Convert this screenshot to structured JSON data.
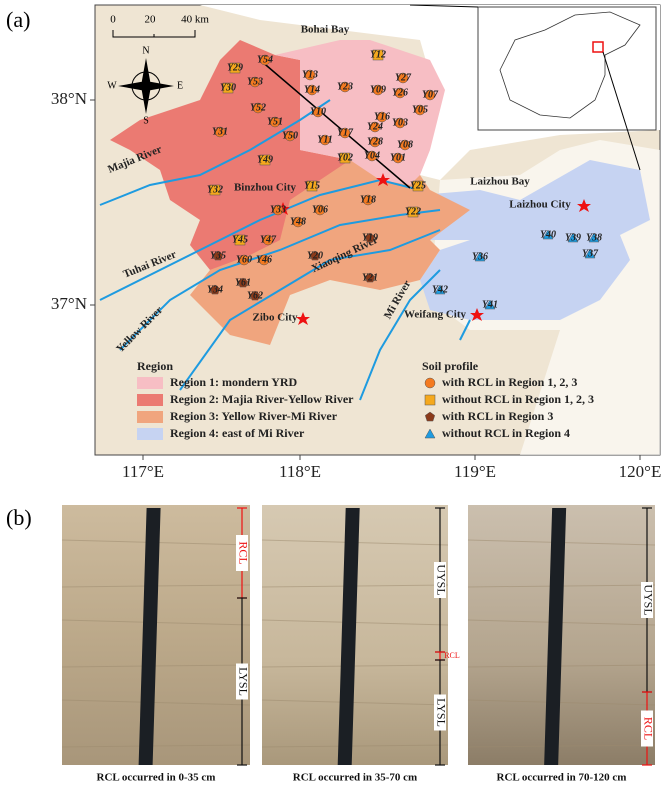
{
  "panel_a": {
    "label": "(a)",
    "scale_bar": [
      "0",
      "20",
      "40 km"
    ],
    "compass": [
      "N",
      "E",
      "S",
      "W"
    ],
    "water_labels": [
      "Bohai Bay",
      "Laizhou Bay"
    ],
    "rivers": [
      "Majia River",
      "Tuhai River",
      "Yellow River",
      "Xiaoqing River",
      "Mi River"
    ],
    "cities": [
      "Binzhou City",
      "Zibo City",
      "Weifang City",
      "Laizhou City"
    ],
    "latitude_ticks": [
      "38°N",
      "37°N"
    ],
    "longitude_ticks": [
      "117°E",
      "118°E",
      "119°E",
      "120°E"
    ],
    "legend": {
      "region_title": "Region",
      "regions": [
        {
          "name": "Region 1: mondern YRD",
          "color": "#f7bec4"
        },
        {
          "name": "Region 2: Majia River-Yellow River",
          "color": "#eb7a72"
        },
        {
          "name": "Region 3: Yellow River-Mi River",
          "color": "#f0a57e"
        },
        {
          "name": "Region 4: east of Mi River",
          "color": "#c6d3f2"
        }
      ],
      "profile_title": "Soil profile",
      "profiles": [
        {
          "name": "with RCL in Region 1, 2, 3",
          "marker": "circle",
          "color": "#f47a20"
        },
        {
          "name": "without RCL in Region 1, 2, 3",
          "marker": "square",
          "color": "#f5a81c"
        },
        {
          "name": "with RCL in Region 3",
          "marker": "pentagon",
          "color": "#8b3a1a"
        },
        {
          "name": "without RCL in Region 4",
          "marker": "triangle",
          "color": "#1e9be0"
        }
      ]
    },
    "sites": [
      {
        "label": "Y54",
        "profile": 0
      },
      {
        "label": "Y29",
        "profile": 1
      },
      {
        "label": "Y30",
        "profile": 1
      },
      {
        "label": "Y53",
        "profile": 0
      },
      {
        "label": "Y52",
        "profile": 0
      },
      {
        "label": "Y51",
        "profile": 0
      },
      {
        "label": "Y50",
        "profile": 0
      },
      {
        "label": "Y31",
        "profile": 0
      },
      {
        "label": "Y49",
        "profile": 1
      },
      {
        "label": "Y32",
        "profile": 1
      },
      {
        "label": "Y33",
        "profile": 0
      },
      {
        "label": "Y15",
        "profile": 1
      },
      {
        "label": "Y06",
        "profile": 0
      },
      {
        "label": "Y48",
        "profile": 0
      },
      {
        "label": "Y45",
        "profile": 1
      },
      {
        "label": "Y47",
        "profile": 0
      },
      {
        "label": "Y35",
        "profile": 2
      },
      {
        "label": "Y60",
        "profile": 0
      },
      {
        "label": "Y46",
        "profile": 0
      },
      {
        "label": "Y61",
        "profile": 2
      },
      {
        "label": "Y34",
        "profile": 2
      },
      {
        "label": "Y62",
        "profile": 2
      },
      {
        "label": "Y20",
        "profile": 2
      },
      {
        "label": "Y19",
        "profile": 2
      },
      {
        "label": "Y21",
        "profile": 2
      },
      {
        "label": "Y18",
        "profile": 0
      },
      {
        "label": "Y22",
        "profile": 1
      },
      {
        "label": "Y25",
        "profile": 1
      },
      {
        "label": "Y12",
        "profile": 1
      },
      {
        "label": "Y13",
        "profile": 0
      },
      {
        "label": "Y14",
        "profile": 0
      },
      {
        "label": "Y23",
        "profile": 0
      },
      {
        "label": "Y27",
        "profile": 0
      },
      {
        "label": "Y09",
        "profile": 0
      },
      {
        "label": "Y26",
        "profile": 0
      },
      {
        "label": "Y07",
        "profile": 0
      },
      {
        "label": "Y10",
        "profile": 0
      },
      {
        "label": "Y16",
        "profile": 0
      },
      {
        "label": "Y05",
        "profile": 0
      },
      {
        "label": "Y24",
        "profile": 0
      },
      {
        "label": "Y03",
        "profile": 0
      },
      {
        "label": "Y11",
        "profile": 0
      },
      {
        "label": "Y17",
        "profile": 0
      },
      {
        "label": "Y28",
        "profile": 0
      },
      {
        "label": "Y08",
        "profile": 0
      },
      {
        "label": "Y02",
        "profile": 1
      },
      {
        "label": "Y04",
        "profile": 0
      },
      {
        "label": "Y01",
        "profile": 0
      },
      {
        "label": "Y36",
        "profile": 3
      },
      {
        "label": "Y40",
        "profile": 3
      },
      {
        "label": "Y39",
        "profile": 3
      },
      {
        "label": "Y38",
        "profile": 3
      },
      {
        "label": "Y37",
        "profile": 3
      },
      {
        "label": "Y42",
        "profile": 3
      },
      {
        "label": "Y41",
        "profile": 3
      }
    ]
  },
  "panel_b": {
    "label": "(b)",
    "photos": [
      {
        "annotations": [
          "RCL",
          "LYSL"
        ],
        "caption": "RCL occurred in 0-35 cm"
      },
      {
        "annotations": [
          "UYSL",
          "RCL",
          "LYSL"
        ],
        "caption": "RCL occurred in 35-70 cm"
      },
      {
        "annotations": [
          "UYSL",
          "RCL"
        ],
        "caption": "RCL occurred in 70-120 cm"
      }
    ]
  }
}
